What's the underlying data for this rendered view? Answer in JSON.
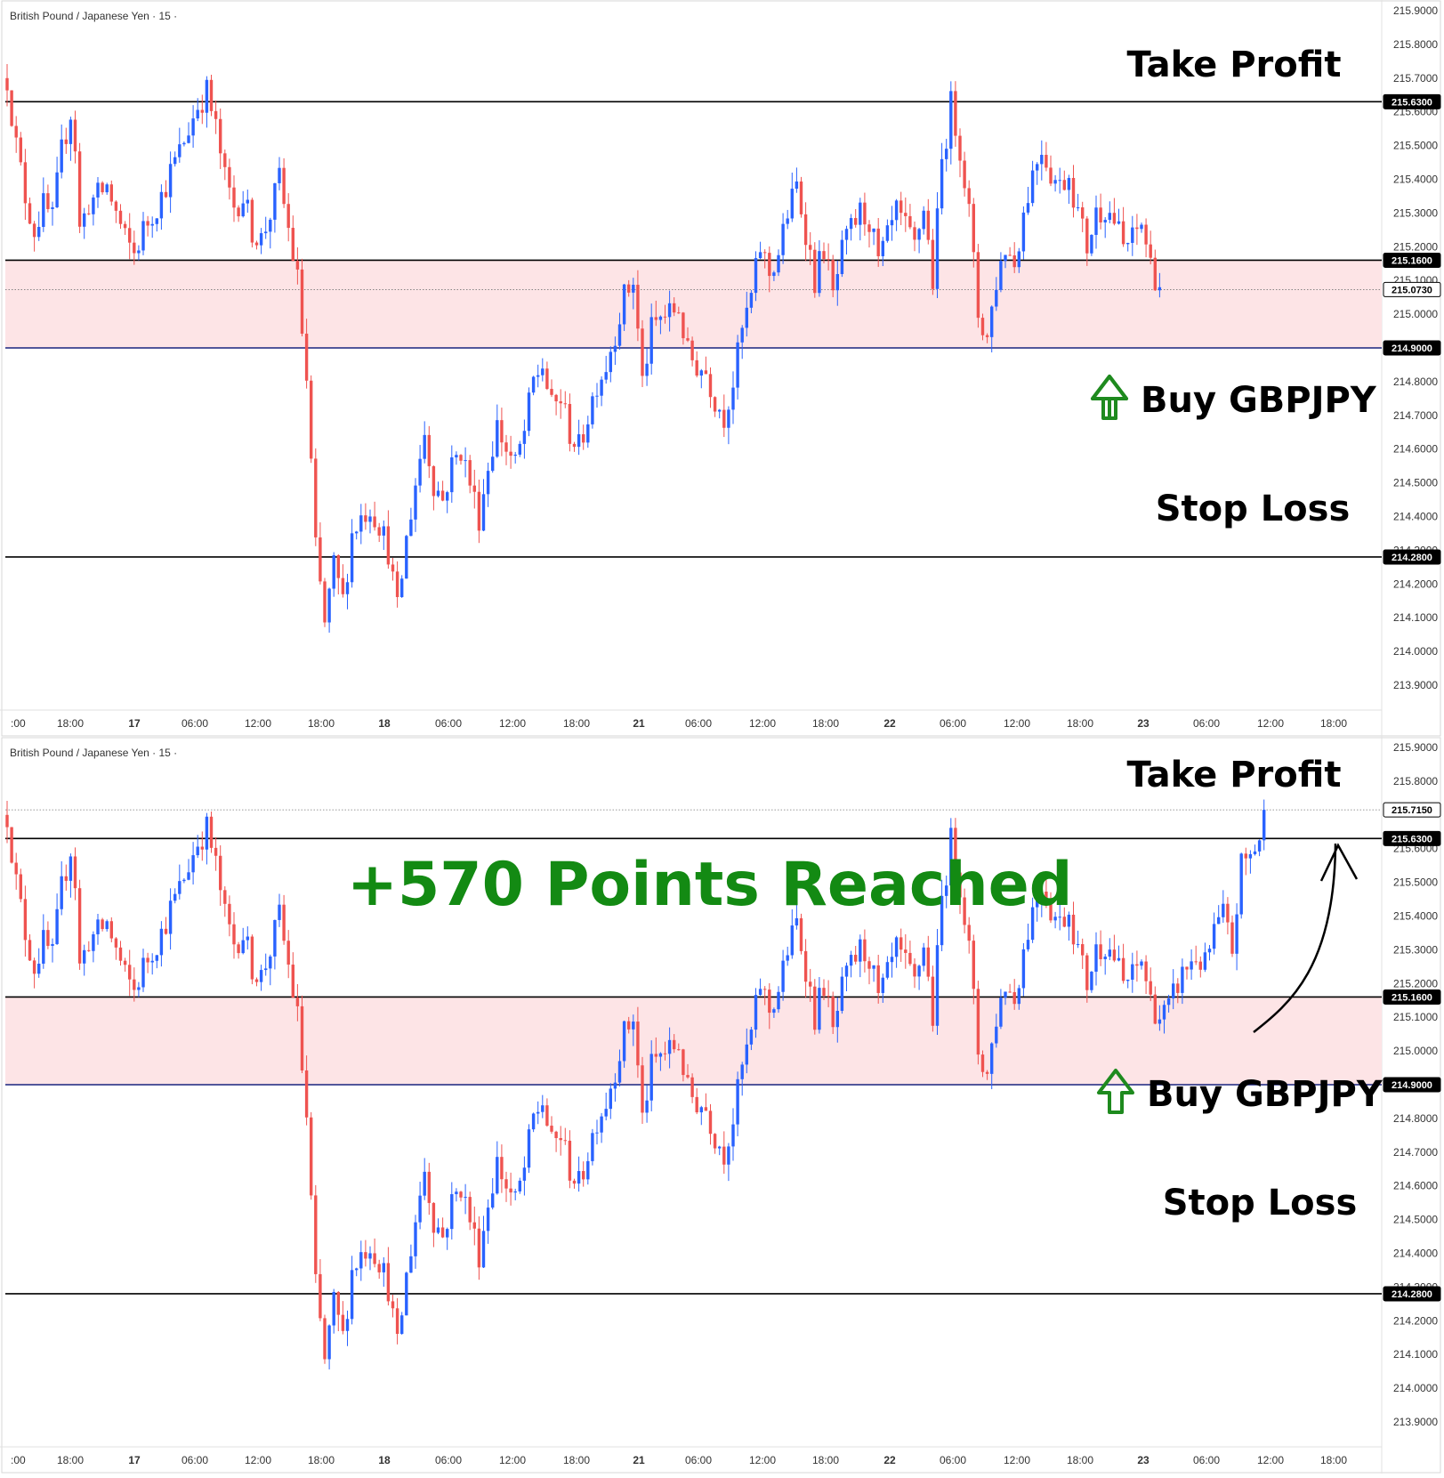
{
  "panels": [
    {
      "id": "before",
      "symbol_label": "British Pound / Japanese Yen · 15 ·",
      "y_ticks": [
        "215.9000",
        "215.8000",
        "215.7000",
        "215.6000",
        "215.5000",
        "215.4000",
        "215.3000",
        "215.2000",
        "215.1000",
        "215.0000",
        "214.8000",
        "214.7000",
        "214.6000",
        "214.5000",
        "214.4000",
        "214.3000",
        "214.2000",
        "214.1000",
        "214.0000",
        "213.9000"
      ],
      "x_ticks": [
        ":00",
        "18:00",
        "17",
        "06:00",
        "12:00",
        "18:00",
        "18",
        "06:00",
        "12:00",
        "18:00",
        "21",
        "06:00",
        "12:00",
        "18:00",
        "22",
        "06:00",
        "12:00",
        "18:00",
        "23",
        "06:00",
        "12:00",
        "18:00"
      ],
      "price_tags": [
        {
          "label": "215.6300",
          "kind": "line"
        },
        {
          "label": "215.1600",
          "kind": "line"
        },
        {
          "label": "215.0730",
          "kind": "last"
        },
        {
          "label": "214.9000",
          "kind": "line"
        },
        {
          "label": "214.2800",
          "kind": "line"
        }
      ],
      "annotations": {
        "take_profit": "Take Profit",
        "buy": "Buy GBPJPY",
        "stop_loss": "Stop Loss"
      }
    },
    {
      "id": "after",
      "symbol_label": "British Pound / Japanese Yen · 15 ·",
      "y_ticks": [
        "215.9000",
        "215.8000",
        "215.6000",
        "215.5000",
        "215.4000",
        "215.3000",
        "215.2000",
        "215.1000",
        "215.0000",
        "214.8000",
        "214.7000",
        "214.6000",
        "214.5000",
        "214.4000",
        "214.3000",
        "214.2000",
        "214.1000",
        "214.0000",
        "213.9000"
      ],
      "x_ticks": [
        ":00",
        "18:00",
        "17",
        "06:00",
        "12:00",
        "18:00",
        "18",
        "06:00",
        "12:00",
        "18:00",
        "21",
        "06:00",
        "12:00",
        "18:00",
        "22",
        "06:00",
        "12:00",
        "18:00",
        "23",
        "06:00",
        "12:00",
        "18:00"
      ],
      "price_tags": [
        {
          "label": "215.7150",
          "kind": "last"
        },
        {
          "label": "215.6300",
          "kind": "line"
        },
        {
          "label": "215.1600",
          "kind": "line"
        },
        {
          "label": "214.9000",
          "kind": "line"
        },
        {
          "label": "214.2800",
          "kind": "line"
        }
      ],
      "annotations": {
        "take_profit": "Take Profit",
        "headline": "+570 Points Reached",
        "buy": "Buy GBPJPY",
        "stop_loss": "Stop Loss"
      }
    }
  ],
  "chart_data": [
    {
      "type": "candlestick",
      "instrument": "British Pound / Japanese Yen",
      "timeframe": "15",
      "ylim": [
        213.85,
        215.92
      ],
      "levels": {
        "take_profit": 215.63,
        "entry_upper": 215.16,
        "entry_lower": 214.9,
        "stop_loss": 214.28,
        "last_price": 215.073
      },
      "entry_zone": [
        214.9,
        215.16
      ],
      "path": [
        [
          0,
          215.7
        ],
        [
          2,
          215.5
        ],
        [
          4,
          215.35
        ],
        [
          6,
          215.25
        ],
        [
          8,
          215.32
        ],
        [
          10,
          215.28
        ],
        [
          12,
          215.48
        ],
        [
          14,
          215.6
        ],
        [
          15,
          215.5
        ],
        [
          16,
          215.25
        ],
        [
          18,
          215.33
        ],
        [
          20,
          215.35
        ],
        [
          22,
          215.38
        ],
        [
          24,
          215.3
        ],
        [
          26,
          215.22
        ],
        [
          28,
          215.18
        ],
        [
          30,
          215.25
        ],
        [
          32,
          215.3
        ],
        [
          34,
          215.35
        ],
        [
          36,
          215.42
        ],
        [
          38,
          215.48
        ],
        [
          40,
          215.55
        ],
        [
          42,
          215.62
        ],
        [
          44,
          215.66
        ],
        [
          46,
          215.55
        ],
        [
          48,
          215.4
        ],
        [
          50,
          215.32
        ],
        [
          52,
          215.35
        ],
        [
          54,
          215.25
        ],
        [
          56,
          215.22
        ],
        [
          58,
          215.3
        ],
        [
          60,
          215.4
        ],
        [
          62,
          215.25
        ],
        [
          64,
          215.1
        ],
        [
          66,
          214.8
        ],
        [
          68,
          214.3
        ],
        [
          70,
          214.08
        ],
        [
          72,
          214.25
        ],
        [
          74,
          214.15
        ],
        [
          76,
          214.35
        ],
        [
          78,
          214.4
        ],
        [
          80,
          214.43
        ],
        [
          82,
          214.38
        ],
        [
          84,
          214.3
        ],
        [
          86,
          214.12
        ],
        [
          88,
          214.33
        ],
        [
          90,
          214.5
        ],
        [
          92,
          214.65
        ],
        [
          94,
          214.5
        ],
        [
          96,
          214.45
        ],
        [
          98,
          214.55
        ],
        [
          100,
          214.6
        ],
        [
          102,
          214.5
        ],
        [
          104,
          214.4
        ],
        [
          106,
          214.55
        ],
        [
          108,
          214.67
        ],
        [
          110,
          214.6
        ],
        [
          112,
          214.55
        ],
        [
          114,
          214.65
        ],
        [
          116,
          214.8
        ],
        [
          118,
          214.85
        ],
        [
          120,
          214.72
        ],
        [
          122,
          214.75
        ],
        [
          124,
          214.65
        ],
        [
          126,
          214.6
        ],
        [
          128,
          214.7
        ],
        [
          130,
          214.8
        ],
        [
          132,
          214.85
        ],
        [
          134,
          214.95
        ],
        [
          136,
          215.05
        ],
        [
          138,
          215.1
        ],
        [
          140,
          214.8
        ],
        [
          142,
          214.95
        ],
        [
          144,
          214.99
        ],
        [
          146,
          215.0
        ],
        [
          148,
          215.02
        ],
        [
          150,
          214.88
        ],
        [
          152,
          214.85
        ],
        [
          154,
          214.83
        ],
        [
          156,
          214.75
        ],
        [
          158,
          214.7
        ],
        [
          160,
          214.8
        ],
        [
          162,
          214.95
        ],
        [
          164,
          215.05
        ],
        [
          166,
          215.2
        ],
        [
          168,
          215.12
        ],
        [
          170,
          215.18
        ],
        [
          172,
          215.3
        ],
        [
          174,
          215.38
        ],
        [
          176,
          215.25
        ],
        [
          178,
          215.1
        ],
        [
          180,
          215.2
        ],
        [
          182,
          215.05
        ],
        [
          184,
          215.18
        ],
        [
          186,
          215.25
        ],
        [
          188,
          215.3
        ],
        [
          190,
          215.28
        ],
        [
          192,
          215.15
        ],
        [
          194,
          215.22
        ],
        [
          196,
          215.3
        ],
        [
          198,
          215.25
        ],
        [
          200,
          215.2
        ],
        [
          202,
          215.32
        ],
        [
          204,
          215.1
        ],
        [
          206,
          215.45
        ],
        [
          208,
          215.62
        ],
        [
          210,
          215.5
        ],
        [
          212,
          215.3
        ],
        [
          214,
          215.0
        ],
        [
          216,
          214.93
        ],
        [
          218,
          215.1
        ],
        [
          220,
          215.2
        ],
        [
          222,
          215.15
        ],
        [
          224,
          215.3
        ],
        [
          226,
          215.42
        ],
        [
          228,
          215.5
        ],
        [
          230,
          215.42
        ],
        [
          232,
          215.38
        ],
        [
          234,
          215.42
        ],
        [
          236,
          215.3
        ],
        [
          238,
          215.2
        ],
        [
          240,
          215.3
        ],
        [
          242,
          215.32
        ],
        [
          244,
          215.28
        ],
        [
          246,
          215.2
        ],
        [
          248,
          215.22
        ],
        [
          250,
          215.27
        ],
        [
          252,
          215.15
        ],
        [
          254,
          215.08
        ]
      ]
    },
    {
      "type": "candlestick",
      "instrument": "British Pound / Japanese Yen",
      "timeframe": "15",
      "ylim": [
        213.85,
        215.92
      ],
      "levels": {
        "take_profit": 215.63,
        "entry_upper": 215.16,
        "entry_lower": 214.9,
        "stop_loss": 214.28,
        "last_price": 215.715
      },
      "entry_zone": [
        214.9,
        215.16
      ],
      "path": [
        [
          0,
          215.7
        ],
        [
          2,
          215.5
        ],
        [
          4,
          215.35
        ],
        [
          6,
          215.25
        ],
        [
          8,
          215.32
        ],
        [
          10,
          215.28
        ],
        [
          12,
          215.48
        ],
        [
          14,
          215.6
        ],
        [
          15,
          215.5
        ],
        [
          16,
          215.25
        ],
        [
          18,
          215.33
        ],
        [
          20,
          215.35
        ],
        [
          22,
          215.38
        ],
        [
          24,
          215.3
        ],
        [
          26,
          215.22
        ],
        [
          28,
          215.18
        ],
        [
          30,
          215.25
        ],
        [
          32,
          215.3
        ],
        [
          34,
          215.35
        ],
        [
          36,
          215.42
        ],
        [
          38,
          215.48
        ],
        [
          40,
          215.55
        ],
        [
          42,
          215.62
        ],
        [
          44,
          215.66
        ],
        [
          46,
          215.55
        ],
        [
          48,
          215.4
        ],
        [
          50,
          215.32
        ],
        [
          52,
          215.35
        ],
        [
          54,
          215.25
        ],
        [
          56,
          215.22
        ],
        [
          58,
          215.3
        ],
        [
          60,
          215.4
        ],
        [
          62,
          215.25
        ],
        [
          64,
          215.1
        ],
        [
          66,
          214.8
        ],
        [
          68,
          214.3
        ],
        [
          70,
          214.08
        ],
        [
          72,
          214.25
        ],
        [
          74,
          214.15
        ],
        [
          76,
          214.35
        ],
        [
          78,
          214.4
        ],
        [
          80,
          214.43
        ],
        [
          82,
          214.38
        ],
        [
          84,
          214.3
        ],
        [
          86,
          214.12
        ],
        [
          88,
          214.33
        ],
        [
          90,
          214.5
        ],
        [
          92,
          214.65
        ],
        [
          94,
          214.5
        ],
        [
          96,
          214.45
        ],
        [
          98,
          214.55
        ],
        [
          100,
          214.6
        ],
        [
          102,
          214.5
        ],
        [
          104,
          214.4
        ],
        [
          106,
          214.55
        ],
        [
          108,
          214.67
        ],
        [
          110,
          214.6
        ],
        [
          112,
          214.55
        ],
        [
          114,
          214.65
        ],
        [
          116,
          214.8
        ],
        [
          118,
          214.85
        ],
        [
          120,
          214.72
        ],
        [
          122,
          214.75
        ],
        [
          124,
          214.65
        ],
        [
          126,
          214.6
        ],
        [
          128,
          214.7
        ],
        [
          130,
          214.8
        ],
        [
          132,
          214.85
        ],
        [
          134,
          214.95
        ],
        [
          136,
          215.05
        ],
        [
          138,
          215.1
        ],
        [
          140,
          214.8
        ],
        [
          142,
          214.95
        ],
        [
          144,
          214.99
        ],
        [
          146,
          215.0
        ],
        [
          148,
          215.02
        ],
        [
          150,
          214.88
        ],
        [
          152,
          214.85
        ],
        [
          154,
          214.83
        ],
        [
          156,
          214.75
        ],
        [
          158,
          214.7
        ],
        [
          160,
          214.8
        ],
        [
          162,
          214.95
        ],
        [
          164,
          215.05
        ],
        [
          166,
          215.2
        ],
        [
          168,
          215.12
        ],
        [
          170,
          215.18
        ],
        [
          172,
          215.3
        ],
        [
          174,
          215.38
        ],
        [
          176,
          215.25
        ],
        [
          178,
          215.1
        ],
        [
          180,
          215.2
        ],
        [
          182,
          215.05
        ],
        [
          184,
          215.18
        ],
        [
          186,
          215.25
        ],
        [
          188,
          215.3
        ],
        [
          190,
          215.28
        ],
        [
          192,
          215.15
        ],
        [
          194,
          215.22
        ],
        [
          196,
          215.3
        ],
        [
          198,
          215.25
        ],
        [
          200,
          215.2
        ],
        [
          202,
          215.32
        ],
        [
          204,
          215.1
        ],
        [
          206,
          215.45
        ],
        [
          208,
          215.62
        ],
        [
          210,
          215.5
        ],
        [
          212,
          215.3
        ],
        [
          214,
          215.0
        ],
        [
          216,
          214.93
        ],
        [
          218,
          215.1
        ],
        [
          220,
          215.2
        ],
        [
          222,
          215.15
        ],
        [
          224,
          215.3
        ],
        [
          226,
          215.42
        ],
        [
          228,
          215.5
        ],
        [
          230,
          215.42
        ],
        [
          232,
          215.38
        ],
        [
          234,
          215.42
        ],
        [
          236,
          215.3
        ],
        [
          238,
          215.2
        ],
        [
          240,
          215.3
        ],
        [
          242,
          215.32
        ],
        [
          244,
          215.28
        ],
        [
          246,
          215.2
        ],
        [
          248,
          215.22
        ],
        [
          250,
          215.27
        ],
        [
          252,
          215.15
        ],
        [
          254,
          215.1
        ],
        [
          256,
          215.12
        ],
        [
          258,
          215.2
        ],
        [
          260,
          215.25
        ],
        [
          262,
          215.28
        ],
        [
          264,
          215.25
        ],
        [
          266,
          215.35
        ],
        [
          268,
          215.4
        ],
        [
          270,
          215.3
        ],
        [
          272,
          215.55
        ],
        [
          274,
          215.58
        ],
        [
          276,
          215.63
        ],
        [
          277,
          215.715
        ]
      ]
    }
  ],
  "colors": {
    "up": "#2962ff",
    "down": "#ef5350",
    "zone_fill": "#fde4e6",
    "level_line": "#000000",
    "zone_bottom_line": "#1a237e",
    "headline": "#138a13",
    "buy_arrow": "#1e8a1e",
    "text": "#000000",
    "axis_text": "#333333"
  }
}
